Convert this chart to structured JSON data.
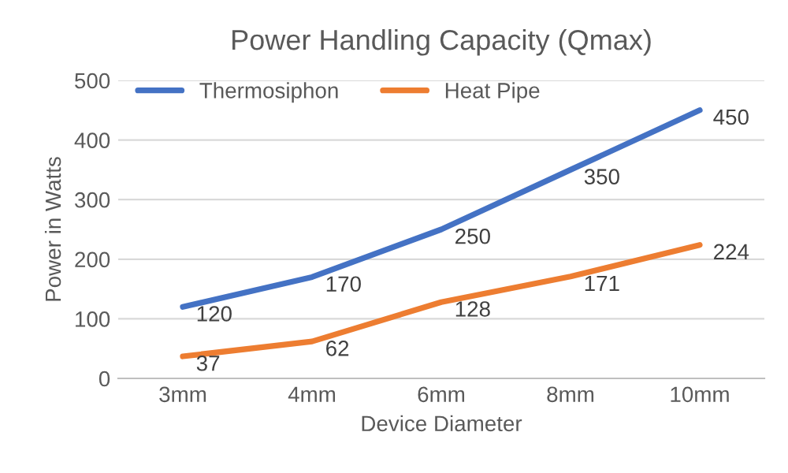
{
  "chart_data": {
    "type": "line",
    "title": "Power Handling Capacity (Qmax)",
    "xlabel": "Device Diameter",
    "ylabel": "Power in Watts",
    "categories": [
      "3mm",
      "4mm",
      "6mm",
      "8mm",
      "10mm"
    ],
    "series": [
      {
        "name": "Thermosiphon",
        "color": "#4472c4",
        "values": [
          120,
          170,
          250,
          350,
          450
        ]
      },
      {
        "name": "Heat Pipe",
        "color": "#ed7d31",
        "values": [
          37,
          62,
          128,
          171,
          224
        ]
      }
    ],
    "ylim": [
      0,
      500
    ],
    "yticks": [
      0,
      100,
      200,
      300,
      400,
      500
    ],
    "grid": "y",
    "legend": "top left",
    "data_labels": true,
    "marker": "none",
    "line_style": "solid"
  }
}
